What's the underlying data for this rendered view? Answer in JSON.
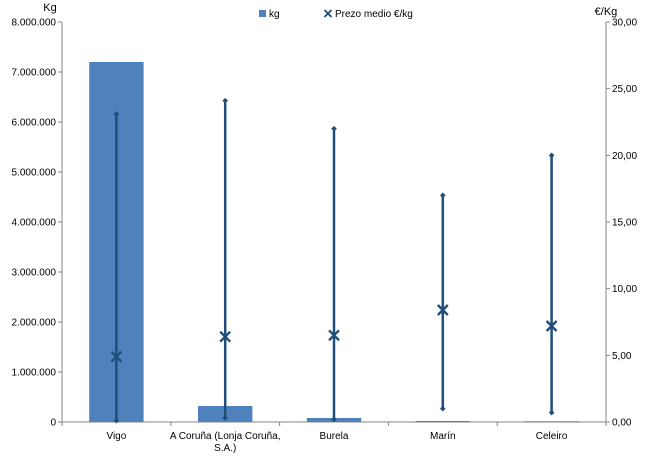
{
  "chart_data": {
    "type": "bar",
    "categories": [
      "Vigo",
      "A Coruña (Lonja Coruña, S.A.)",
      "Burela",
      "Marín",
      "Celeiro"
    ],
    "category_lines": [
      [
        "Vigo"
      ],
      [
        "A Coruña (Lonja Coruña,",
        "S.A.)"
      ],
      [
        "Burela"
      ],
      [
        "Marín"
      ],
      [
        "Celeiro"
      ]
    ],
    "series": [
      {
        "name": "kg",
        "type": "bar",
        "axis": "left",
        "color": "#4f81bd",
        "values": [
          7200000,
          320000,
          80000,
          20000,
          15000
        ]
      },
      {
        "name": "Prezo medio €/kg",
        "type": "marker",
        "axis": "right",
        "color": "#1f4e79",
        "values": [
          4.9,
          6.4,
          6.5,
          8.4,
          7.2
        ]
      }
    ],
    "price_range": {
      "min": [
        0.1,
        0.3,
        0.2,
        1.0,
        0.7
      ],
      "max": [
        23.1,
        24.1,
        22.0,
        17.0,
        20.0
      ]
    },
    "left_axis": {
      "label": "Kg",
      "min": 0,
      "max": 8000000,
      "step": 1000000,
      "tick_labels": [
        "0",
        "1.000.000",
        "2.000.000",
        "3.000.000",
        "4.000.000",
        "5.000.000",
        "6.000.000",
        "7.000.000",
        "8.000.000"
      ]
    },
    "right_axis": {
      "label": "€/Kg",
      "min": 0,
      "max": 30,
      "step": 5,
      "tick_labels": [
        "0,00",
        "5,00",
        "10,00",
        "15,00",
        "20,00",
        "25,00",
        "30,00"
      ]
    },
    "legend": {
      "position": "top",
      "items": [
        "kg",
        "Prezo medio €/kg"
      ]
    },
    "grid": false
  }
}
